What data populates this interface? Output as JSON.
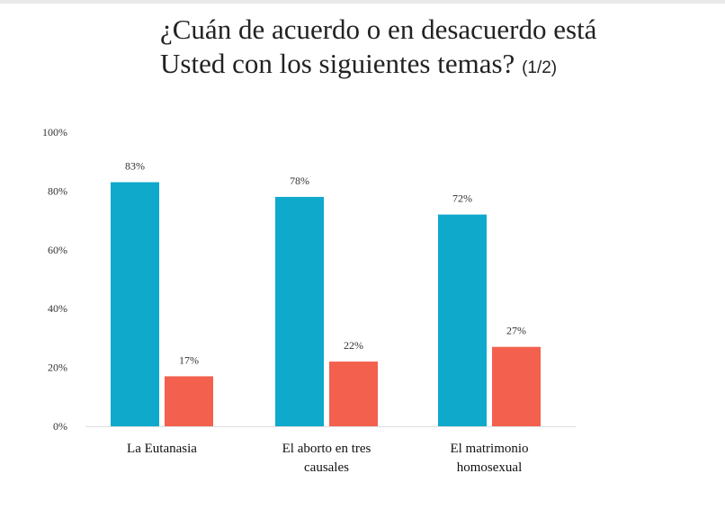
{
  "title": {
    "line1": "¿Cuán de acuerdo o en desacuerdo está",
    "line2": "Usted con los siguientes temas?",
    "suffix": "(1/2)"
  },
  "chart_data": {
    "type": "bar",
    "title": "¿Cuán de acuerdo o en desacuerdo está Usted con los siguientes temas? (1/2)",
    "categories": [
      [
        "La Eutanasia"
      ],
      [
        "El aborto en tres",
        "causales"
      ],
      [
        "El matrimonio",
        "homosexual"
      ]
    ],
    "series": [
      {
        "values": [
          83,
          78,
          72
        ],
        "color": "#0fa9cc"
      },
      {
        "values": [
          17,
          22,
          27
        ],
        "color": "#f4604e"
      }
    ],
    "value_suffix": "%",
    "ylim": [
      0,
      100
    ],
    "yticks": [
      0,
      20,
      40,
      60,
      80,
      100
    ],
    "ytick_labels": [
      "0%",
      "20%",
      "40%",
      "60%",
      "80%",
      "100%"
    ],
    "grid": false,
    "legend": "none"
  }
}
